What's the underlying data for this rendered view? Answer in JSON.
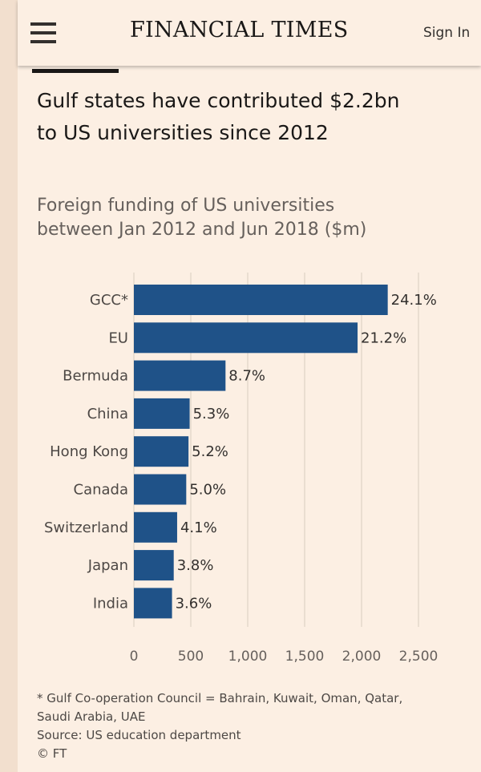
{
  "header": {
    "brand": "FINANCIAL TIMES",
    "sign_in": "Sign In"
  },
  "article": {
    "headline_line1": "Gulf states have contributed $2.2bn",
    "headline_line2": "to US universities since 2012"
  },
  "chart_data": {
    "type": "bar",
    "orientation": "horizontal",
    "title": "Foreign funding of US universities between Jan 2012 and Jun 2018 ($m)",
    "title_line1": "Foreign funding of US universities",
    "title_line2": "between Jan 2012 and Jun 2018 ($m)",
    "categories": [
      "GCC*",
      "EU",
      "Bermuda",
      "China",
      "Hong Kong",
      "Canada",
      "Switzerland",
      "Japan",
      "India"
    ],
    "values": [
      2230,
      1965,
      805,
      490,
      480,
      460,
      380,
      350,
      335
    ],
    "data_labels": [
      "24.1%",
      "21.2%",
      "8.7%",
      "5.3%",
      "5.2%",
      "5.0%",
      "4.1%",
      "3.8%",
      "3.6%"
    ],
    "xlim": [
      0,
      2500
    ],
    "xticks": [
      0,
      500,
      1000,
      1500,
      2000,
      2500
    ],
    "xtick_labels": [
      "0",
      "500",
      "1,000",
      "1,500",
      "2,000",
      "2,500"
    ],
    "grid": "vertical",
    "legend": "none",
    "bar_color": "#1f5288",
    "grid_color": "#d9ccbf"
  },
  "footnotes": {
    "note_line1": "* Gulf Co-operation Council = Bahrain, Kuwait, Oman, Qatar,",
    "note_line2": "Saudi Arabia, UAE",
    "source": "Source: US education department",
    "copyright": "© FT"
  },
  "colors": {
    "background": "#fcefe3",
    "text": "#33302e"
  }
}
